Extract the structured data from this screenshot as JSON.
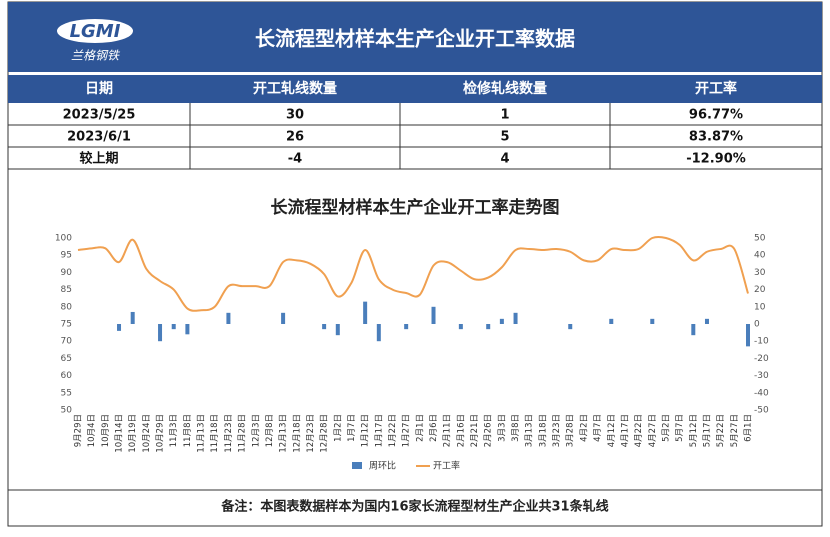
{
  "header": {
    "logo": "LGMI",
    "logo_sub": "兰格钢铁",
    "title": "长流程型材样本生产企业开工率数据"
  },
  "table": {
    "columns": [
      "日期",
      "开工轧线数量",
      "检修轧线数量",
      "开工率"
    ],
    "rows": [
      [
        "2023/5/25",
        "30",
        "1",
        "96.77%"
      ],
      [
        "2023/6/1",
        "26",
        "5",
        "83.87%"
      ],
      [
        "较上期",
        "-4",
        "4",
        "-12.90%"
      ]
    ]
  },
  "chart_data": {
    "type": "bar_line",
    "title": "长流程型材样本生产企业开工率走势图",
    "categories": [
      "9月29日",
      "10月4日",
      "10月9日",
      "10月14日",
      "10月19日",
      "10月24日",
      "10月29日",
      "11月3日",
      "11月8日",
      "11月13日",
      "11月18日",
      "11月23日",
      "11月28日",
      "12月3日",
      "12月8日",
      "12月13日",
      "12月18日",
      "12月23日",
      "12月28日",
      "1月2日",
      "1月7日",
      "1月12日",
      "1月17日",
      "1月22日",
      "1月27日",
      "2月1日",
      "2月6日",
      "2月11日",
      "2月16日",
      "2月21日",
      "2月26日",
      "3月3日",
      "3月8日",
      "3月13日",
      "3月18日",
      "3月23日",
      "3月28日",
      "4月2日",
      "4月7日",
      "4月12日",
      "4月17日",
      "4月22日",
      "4月27日",
      "5月2日",
      "5月7日",
      "5月12日",
      "5月17日",
      "5月22日",
      "5月27日",
      "6月1日"
    ],
    "series": [
      {
        "name": "周环比",
        "color": "#4a7ebb",
        "axis": "y2",
        "values": [
          null,
          null,
          null,
          -4,
          7,
          null,
          -10,
          -3,
          -6,
          null,
          null,
          6.5,
          null,
          null,
          null,
          6.5,
          null,
          null,
          -3,
          -6.5,
          null,
          13,
          -10,
          null,
          -3,
          null,
          10,
          null,
          -3,
          null,
          -3,
          3,
          6.5,
          null,
          null,
          null,
          -3,
          null,
          null,
          3,
          null,
          null,
          3,
          null,
          null,
          -6.5,
          3,
          null,
          null,
          -13
        ]
      },
      {
        "name": "开工率",
        "color": "#f0a050",
        "values": [
          96.5,
          97,
          97,
          93,
          99.5,
          91,
          87.5,
          85,
          79.5,
          79,
          80,
          86,
          86,
          86,
          86,
          93,
          93.5,
          92.5,
          89.5,
          83,
          87,
          96.5,
          88,
          85,
          84,
          83.5,
          92,
          93,
          90.5,
          88,
          88.5,
          91.5,
          96.5,
          96.8,
          96.5,
          96.8,
          96,
          93.5,
          93.5,
          96.8,
          96.5,
          96.8,
          100,
          100,
          98,
          93.5,
          96,
          96.8,
          96.8,
          83.87
        ]
      }
    ],
    "ylim": [
      50,
      100
    ],
    "yticks": [
      50,
      55,
      60,
      65,
      70,
      75,
      80,
      85,
      90,
      95,
      100
    ],
    "y2lim": [
      -50,
      50
    ],
    "y2ticks": [
      -50,
      -40,
      -30,
      -20,
      -10,
      0,
      10,
      20,
      30,
      40,
      50
    ],
    "legend": "bottom"
  },
  "note": "备注：本图表数据样本为国内16家长流程型材生产企业共31条轧线"
}
